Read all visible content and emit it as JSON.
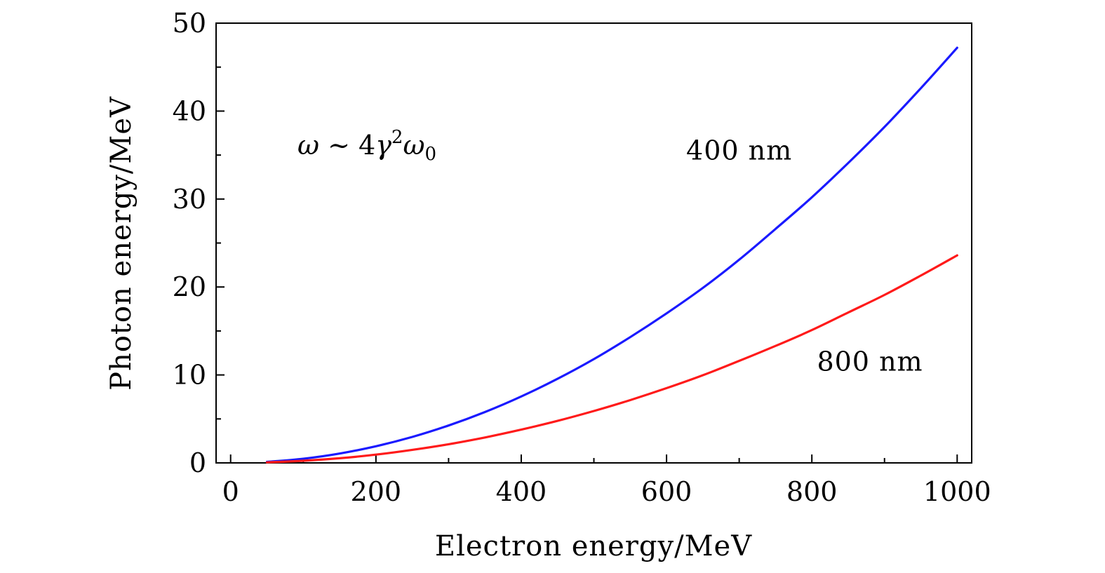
{
  "chart_data": {
    "type": "line",
    "title": "",
    "xlabel": "Electron energy/MeV",
    "ylabel": "Photon energy/MeV",
    "xlim": [
      -20,
      1020
    ],
    "ylim": [
      0,
      50
    ],
    "x_ticks": [
      0,
      200,
      400,
      600,
      800,
      1000
    ],
    "y_ticks": [
      0,
      10,
      20,
      30,
      40,
      50
    ],
    "grid": false,
    "legend": "none",
    "formula": {
      "omega": "ω",
      "sim": " ~ 4",
      "gamma": "γ",
      "sup": "2",
      "omega0": "ω",
      "sub": "0"
    },
    "series": [
      {
        "color": "#1a1aff",
        "x": [
          50,
          100,
          150,
          200,
          250,
          300,
          350,
          400,
          450,
          500,
          550,
          600,
          650,
          700,
          750,
          800,
          850,
          900,
          950,
          1000
        ],
        "y": [
          0.12,
          0.47,
          1.06,
          1.89,
          2.95,
          4.25,
          5.78,
          7.55,
          9.56,
          11.8,
          14.3,
          17.0,
          19.9,
          23.1,
          26.6,
          30.2,
          34.1,
          38.2,
          42.6,
          47.2
        ]
      },
      {
        "color": "#ff1a1a",
        "x": [
          50,
          100,
          150,
          200,
          250,
          300,
          350,
          400,
          450,
          500,
          550,
          600,
          650,
          700,
          750,
          800,
          850,
          900,
          950,
          1000
        ],
        "y": [
          0.06,
          0.24,
          0.53,
          0.94,
          1.48,
          2.12,
          2.89,
          3.78,
          4.78,
          5.9,
          7.14,
          8.5,
          9.97,
          11.6,
          13.3,
          15.1,
          17.1,
          19.1,
          21.3,
          23.6
        ]
      }
    ],
    "annotations": [
      {
        "text": "400 nm",
        "x": 700,
        "y": 34.5
      },
      {
        "text": "800 nm",
        "x": 880,
        "y": 10.5
      }
    ]
  }
}
